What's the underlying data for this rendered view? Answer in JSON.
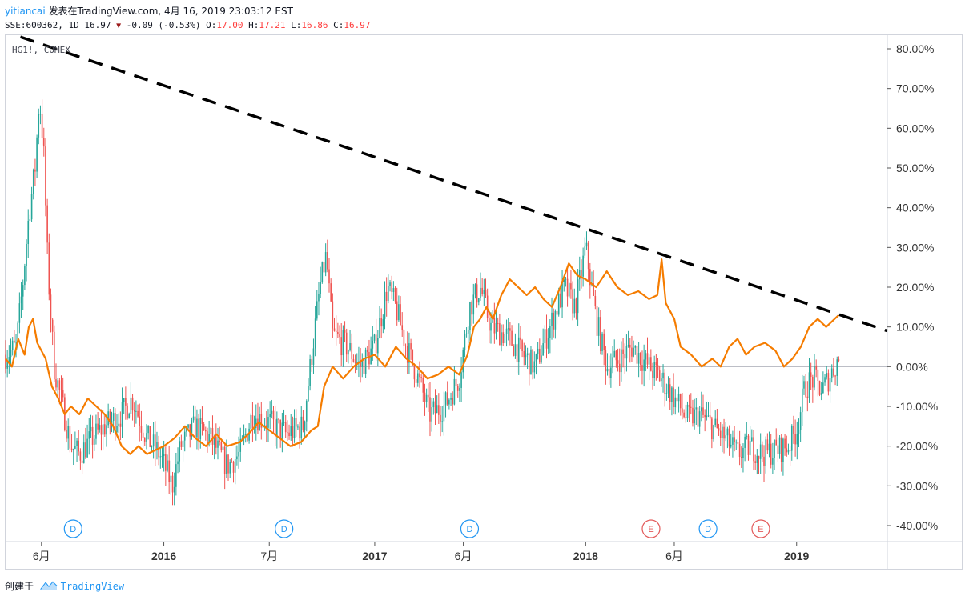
{
  "header": {
    "user": "yitiancai",
    "published": "发表在TradingView.com, 4月 16, 2019 23:03:12 EST",
    "symbol_line_prefix": "SSE:600362, 1D 16.97",
    "down_arrow": "▼",
    "symbol_line_change": "-0.09 (-0.53%)",
    "o_label": "O:",
    "o_value": "17.00",
    "h_label": "H:",
    "h_value": "17.21",
    "l_label": "L:",
    "l_value": "16.86",
    "c_label": "C:",
    "c_value": "16.97"
  },
  "overlay_label": "HG1!, COMEX",
  "footer": {
    "created_with": "创建于",
    "brand": "TradingView",
    "brand_icon": "tradingview-logo-icon"
  },
  "chart_data": {
    "type": "line",
    "y_unit": "%",
    "ylim": [
      -44,
      83
    ],
    "y_ticks": [
      -40,
      -30,
      -20,
      -10,
      0,
      10,
      20,
      30,
      40,
      50,
      60,
      70,
      80
    ],
    "y_tick_labels": [
      "-40.00%",
      "-30.00%",
      "-20.00%",
      "-10.00%",
      "0.00%",
      "10.00%",
      "20.00%",
      "30.00%",
      "40.00%",
      "50.00%",
      "60.00%",
      "70.00%",
      "80.00%"
    ],
    "zero_line": true,
    "grid": false,
    "xlim": [
      2015.25,
      2019.43
    ],
    "x_ticks": [
      {
        "x": 2015.42,
        "label": "6月",
        "bold": false
      },
      {
        "x": 2016.0,
        "label": "2016",
        "bold": true
      },
      {
        "x": 2016.5,
        "label": "7月",
        "bold": false
      },
      {
        "x": 2017.0,
        "label": "2017",
        "bold": true
      },
      {
        "x": 2017.42,
        "label": "6月",
        "bold": false
      },
      {
        "x": 2018.0,
        "label": "2018",
        "bold": true
      },
      {
        "x": 2018.42,
        "label": "6月",
        "bold": false
      },
      {
        "x": 2019.0,
        "label": "2019",
        "bold": true
      }
    ],
    "candles_series": {
      "up_color": "#26a69a",
      "down_color": "#ef5350",
      "anchors": [
        [
          2015.25,
          3
        ],
        [
          2015.3,
          5
        ],
        [
          2015.33,
          20
        ],
        [
          2015.36,
          38
        ],
        [
          2015.39,
          50
        ],
        [
          2015.41,
          68
        ],
        [
          2015.43,
          55
        ],
        [
          2015.45,
          25
        ],
        [
          2015.48,
          0
        ],
        [
          2015.52,
          -10
        ],
        [
          2015.56,
          -20
        ],
        [
          2015.6,
          -22
        ],
        [
          2015.66,
          -18
        ],
        [
          2015.72,
          -15
        ],
        [
          2015.8,
          -12
        ],
        [
          2015.85,
          -8
        ],
        [
          2015.92,
          -18
        ],
        [
          2015.98,
          -22
        ],
        [
          2016.04,
          -30
        ],
        [
          2016.08,
          -20
        ],
        [
          2016.15,
          -15
        ],
        [
          2016.22,
          -18
        ],
        [
          2016.3,
          -25
        ],
        [
          2016.36,
          -22
        ],
        [
          2016.42,
          -12
        ],
        [
          2016.5,
          -14
        ],
        [
          2016.58,
          -17
        ],
        [
          2016.66,
          -15
        ],
        [
          2016.74,
          20
        ],
        [
          2016.77,
          28
        ],
        [
          2016.8,
          8
        ],
        [
          2016.87,
          5
        ],
        [
          2016.93,
          0
        ],
        [
          2017.0,
          5
        ],
        [
          2017.06,
          20
        ],
        [
          2017.1,
          15
        ],
        [
          2017.15,
          5
        ],
        [
          2017.2,
          -2
        ],
        [
          2017.26,
          -12
        ],
        [
          2017.33,
          -10
        ],
        [
          2017.4,
          -3
        ],
        [
          2017.45,
          15
        ],
        [
          2017.5,
          20
        ],
        [
          2017.55,
          10
        ],
        [
          2017.62,
          8
        ],
        [
          2017.7,
          3
        ],
        [
          2017.76,
          0
        ],
        [
          2017.83,
          10
        ],
        [
          2017.9,
          20
        ],
        [
          2017.95,
          15
        ],
        [
          2018.0,
          30
        ],
        [
          2018.05,
          12
        ],
        [
          2018.1,
          0
        ],
        [
          2018.16,
          2
        ],
        [
          2018.22,
          5
        ],
        [
          2018.3,
          0
        ],
        [
          2018.36,
          -3
        ],
        [
          2018.42,
          -8
        ],
        [
          2018.48,
          -13
        ],
        [
          2018.54,
          -12
        ],
        [
          2018.6,
          -15
        ],
        [
          2018.66,
          -18
        ],
        [
          2018.72,
          -22
        ],
        [
          2018.78,
          -20
        ],
        [
          2018.84,
          -22
        ],
        [
          2018.9,
          -21
        ],
        [
          2018.96,
          -20
        ],
        [
          2019.0,
          -16
        ],
        [
          2019.04,
          -5
        ],
        [
          2019.08,
          -3
        ],
        [
          2019.12,
          -6
        ],
        [
          2019.16,
          -2
        ],
        [
          2019.2,
          2
        ]
      ]
    },
    "series": [
      {
        "color": "#f57c00",
        "points": [
          [
            2015.25,
            2
          ],
          [
            2015.28,
            0
          ],
          [
            2015.31,
            7
          ],
          [
            2015.34,
            3
          ],
          [
            2015.36,
            10
          ],
          [
            2015.38,
            12
          ],
          [
            2015.4,
            6
          ],
          [
            2015.42,
            4
          ],
          [
            2015.44,
            2
          ],
          [
            2015.47,
            -5
          ],
          [
            2015.5,
            -8
          ],
          [
            2015.53,
            -12
          ],
          [
            2015.56,
            -10
          ],
          [
            2015.6,
            -12
          ],
          [
            2015.64,
            -8
          ],
          [
            2015.68,
            -10
          ],
          [
            2015.72,
            -12
          ],
          [
            2015.76,
            -15
          ],
          [
            2015.8,
            -20
          ],
          [
            2015.84,
            -22
          ],
          [
            2015.88,
            -20
          ],
          [
            2015.92,
            -22
          ],
          [
            2015.96,
            -21
          ],
          [
            2016.0,
            -20
          ],
          [
            2016.05,
            -18
          ],
          [
            2016.1,
            -15
          ],
          [
            2016.15,
            -18
          ],
          [
            2016.2,
            -20
          ],
          [
            2016.25,
            -17
          ],
          [
            2016.3,
            -20
          ],
          [
            2016.36,
            -19
          ],
          [
            2016.4,
            -17
          ],
          [
            2016.45,
            -14
          ],
          [
            2016.5,
            -16
          ],
          [
            2016.55,
            -18
          ],
          [
            2016.6,
            -20
          ],
          [
            2016.65,
            -19
          ],
          [
            2016.7,
            -16
          ],
          [
            2016.73,
            -15
          ],
          [
            2016.76,
            -5
          ],
          [
            2016.8,
            0
          ],
          [
            2016.85,
            -3
          ],
          [
            2016.9,
            0
          ],
          [
            2016.95,
            2
          ],
          [
            2017.0,
            3
          ],
          [
            2017.05,
            0
          ],
          [
            2017.1,
            5
          ],
          [
            2017.15,
            2
          ],
          [
            2017.2,
            0
          ],
          [
            2017.25,
            -3
          ],
          [
            2017.3,
            -2
          ],
          [
            2017.35,
            0
          ],
          [
            2017.4,
            -2
          ],
          [
            2017.44,
            3
          ],
          [
            2017.47,
            10
          ],
          [
            2017.5,
            12
          ],
          [
            2017.53,
            15
          ],
          [
            2017.56,
            12
          ],
          [
            2017.6,
            18
          ],
          [
            2017.64,
            22
          ],
          [
            2017.68,
            20
          ],
          [
            2017.72,
            18
          ],
          [
            2017.76,
            20
          ],
          [
            2017.8,
            17
          ],
          [
            2017.84,
            15
          ],
          [
            2017.88,
            20
          ],
          [
            2017.92,
            26
          ],
          [
            2017.96,
            23
          ],
          [
            2018.0,
            22
          ],
          [
            2018.05,
            20
          ],
          [
            2018.1,
            24
          ],
          [
            2018.15,
            20
          ],
          [
            2018.2,
            18
          ],
          [
            2018.25,
            19
          ],
          [
            2018.3,
            17
          ],
          [
            2018.34,
            18
          ],
          [
            2018.36,
            27
          ],
          [
            2018.38,
            16
          ],
          [
            2018.42,
            12
          ],
          [
            2018.45,
            5
          ],
          [
            2018.5,
            3
          ],
          [
            2018.55,
            0
          ],
          [
            2018.6,
            2
          ],
          [
            2018.64,
            0
          ],
          [
            2018.68,
            5
          ],
          [
            2018.72,
            7
          ],
          [
            2018.76,
            3
          ],
          [
            2018.8,
            5
          ],
          [
            2018.85,
            6
          ],
          [
            2018.9,
            4
          ],
          [
            2018.94,
            0
          ],
          [
            2018.98,
            2
          ],
          [
            2019.02,
            5
          ],
          [
            2019.06,
            10
          ],
          [
            2019.1,
            12
          ],
          [
            2019.14,
            10
          ],
          [
            2019.18,
            12
          ],
          [
            2019.2,
            13
          ]
        ]
      }
    ],
    "trend_line": {
      "start": [
        2015.32,
        83
      ],
      "end": [
        2019.43,
        9
      ],
      "style": "dashed",
      "color": "#000000"
    },
    "events": [
      {
        "label": "D",
        "x": 2015.57,
        "color": "#2196f3"
      },
      {
        "label": "D",
        "x": 2016.57,
        "color": "#2196f3"
      },
      {
        "label": "D",
        "x": 2017.45,
        "color": "#2196f3"
      },
      {
        "label": "E",
        "x": 2018.31,
        "color": "#e35959"
      },
      {
        "label": "D",
        "x": 2018.58,
        "color": "#2196f3"
      },
      {
        "label": "E",
        "x": 2018.83,
        "color": "#e35959"
      }
    ]
  }
}
